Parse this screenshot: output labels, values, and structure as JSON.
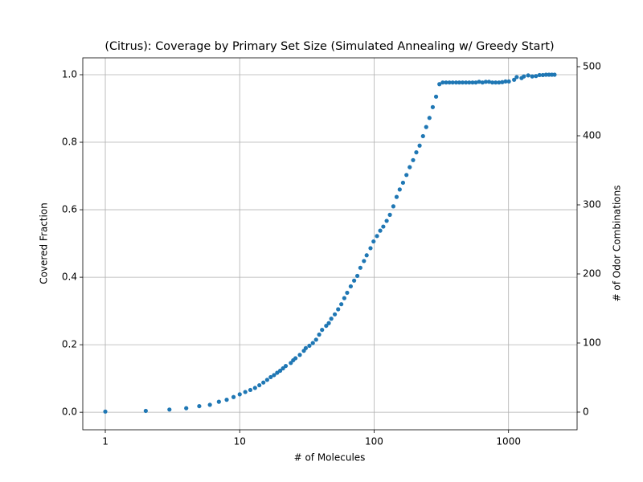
{
  "chart_data": {
    "type": "scatter",
    "title": "(Citrus): Coverage by Primary Set Size (Simulated Annealing w/ Greedy Start)",
    "x_label": "# of Molecules",
    "y_label": "Covered Fraction",
    "y2_label": "# of Odor Combinations",
    "x_scale": "log",
    "grid": true,
    "xlim": [
      0.68,
      3236
    ],
    "xticks": [
      1,
      10,
      100,
      1000
    ],
    "ylim": [
      -0.052,
      1.05
    ],
    "yticks": [
      {
        "value": 0,
        "label": "0.0"
      },
      {
        "value": 0.2,
        "label": "0.2"
      },
      {
        "value": 0.4,
        "label": "0.4"
      },
      {
        "value": 0.6,
        "label": "0.6"
      },
      {
        "value": 0.8,
        "label": "0.8"
      },
      {
        "value": 1,
        "label": "1.0"
      }
    ],
    "y2lim": [
      -25.6,
      512.8
    ],
    "y2ticks": [
      0,
      100,
      200,
      300,
      400,
      500
    ],
    "series": [
      {
        "color": "#1f77b4",
        "x": [
          1,
          2,
          3,
          4,
          5,
          6,
          7,
          8,
          9,
          10,
          11,
          12,
          13,
          14,
          15,
          16,
          17,
          18,
          19,
          20,
          21,
          22,
          24,
          25,
          26,
          28,
          30,
          31,
          33,
          35,
          37,
          39,
          41,
          44,
          46,
          48,
          51,
          54,
          57,
          60,
          63,
          67,
          71,
          75,
          79,
          84,
          88,
          94,
          99,
          105,
          111,
          117,
          124,
          131,
          139,
          147,
          155,
          164,
          174,
          184,
          195,
          206,
          218,
          231,
          244,
          258,
          273,
          289,
          306,
          324,
          343,
          363,
          384,
          407,
          430,
          455,
          482,
          510,
          540,
          571,
          604,
          640,
          677,
          716,
          758,
          802,
          849,
          898,
          950,
          1006,
          1100,
          1150,
          1250,
          1300,
          1400,
          1500,
          1600,
          1700,
          1800,
          1900,
          2000,
          2100,
          2200
        ],
        "values": [
          0.002,
          0.004,
          0.008,
          0.012,
          0.018,
          0.022,
          0.031,
          0.037,
          0.045,
          0.053,
          0.06,
          0.066,
          0.072,
          0.08,
          0.088,
          0.096,
          0.104,
          0.11,
          0.117,
          0.123,
          0.13,
          0.137,
          0.146,
          0.154,
          0.16,
          0.17,
          0.182,
          0.19,
          0.197,
          0.205,
          0.215,
          0.23,
          0.244,
          0.256,
          0.264,
          0.277,
          0.29,
          0.305,
          0.32,
          0.338,
          0.354,
          0.373,
          0.39,
          0.404,
          0.428,
          0.448,
          0.465,
          0.486,
          0.506,
          0.522,
          0.538,
          0.55,
          0.567,
          0.585,
          0.61,
          0.638,
          0.66,
          0.68,
          0.703,
          0.726,
          0.747,
          0.77,
          0.79,
          0.818,
          0.845,
          0.872,
          0.904,
          0.935,
          0.972,
          0.977,
          0.977,
          0.977,
          0.977,
          0.977,
          0.977,
          0.977,
          0.977,
          0.977,
          0.977,
          0.977,
          0.979,
          0.977,
          0.979,
          0.979,
          0.977,
          0.977,
          0.977,
          0.978,
          0.98,
          0.98,
          0.985,
          0.993,
          0.99,
          0.995,
          0.998,
          0.995,
          0.996,
          0.999,
          0.999,
          1.0,
          1.0,
          1.0,
          1.0
        ]
      }
    ]
  }
}
